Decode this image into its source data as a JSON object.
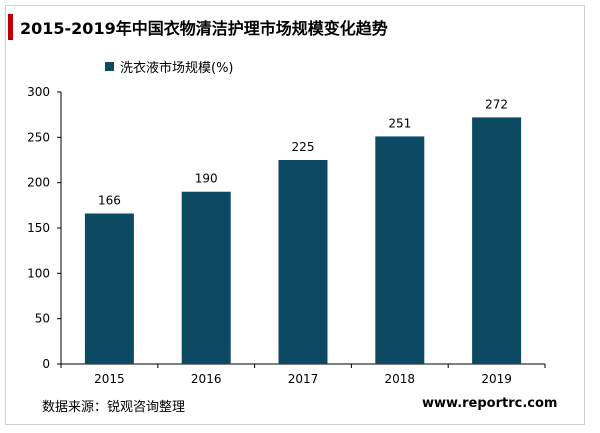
{
  "title": "2015-2019年中国衣物清洁护理市场规模变化趋势",
  "source": "数据来源：锐观咨询整理",
  "website": "www.reportrc.com",
  "colors": {
    "bar": "#0c4a63",
    "accent": "#c00000",
    "axis": "#000000"
  },
  "chart_data": {
    "type": "bar",
    "categories": [
      "2015",
      "2016",
      "2017",
      "2018",
      "2019"
    ],
    "series": [
      {
        "name": "洗衣液市场规模(%)",
        "values": [
          166,
          190,
          225,
          251,
          272
        ]
      }
    ],
    "ylim": [
      0,
      300
    ],
    "yticks": [
      "0",
      "50",
      "100",
      "150",
      "200",
      "250",
      "300"
    ],
    "grid": false,
    "legend": "top-left",
    "data_labels": [
      "166",
      "190",
      "225",
      "251",
      "272"
    ]
  }
}
